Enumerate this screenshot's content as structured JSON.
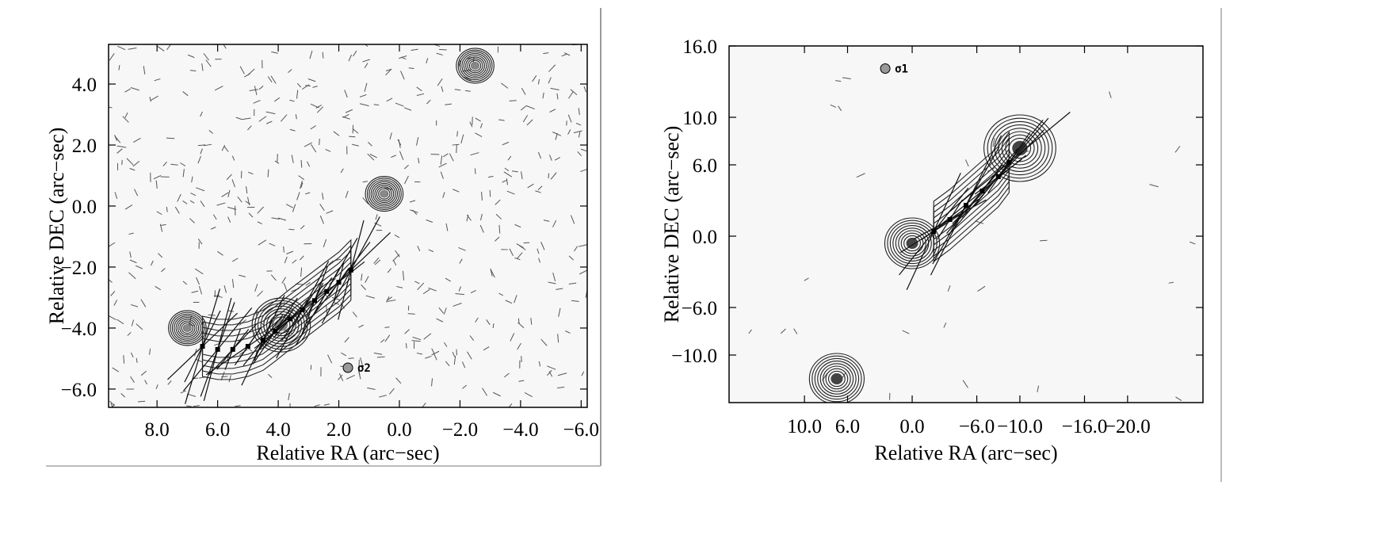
{
  "chart_data": [
    {
      "type": "contour",
      "xlabel": "Relative RA (arc−sec)",
      "ylabel": "Relative DEC (arc−sec)",
      "xlim": [
        9.6,
        -6.2
      ],
      "ylim": [
        -6.6,
        5.3
      ],
      "xticks": [
        8.0,
        6.0,
        4.0,
        2.0,
        0.0,
        -2.0,
        -4.0,
        -6.0
      ],
      "xtick_labels": [
        "8.0",
        "6.0",
        "4.0",
        "2.0",
        "0.0",
        "−2.0",
        "−4.0",
        "−6.0"
      ],
      "yticks": [
        4.0,
        2.0,
        0.0,
        -2.0,
        -4.0,
        -6.0
      ],
      "ytick_labels": [
        "4.0",
        "2.0",
        "0.0",
        "−2.0",
        "−4.0",
        "−6.0"
      ],
      "beam_label": "σ2",
      "beam_position": [
        1.7,
        -5.3
      ],
      "components": [
        {
          "x": -2.5,
          "y": 4.6
        },
        {
          "x": 0.5,
          "y": 0.4
        },
        {
          "x": 3.9,
          "y": -3.9
        },
        {
          "x": 7.0,
          "y": -4.0
        }
      ],
      "knots": [
        {
          "x": 6.5,
          "y": -4.6
        },
        {
          "x": 6.0,
          "y": -4.7
        },
        {
          "x": 5.5,
          "y": -4.7
        },
        {
          "x": 5.0,
          "y": -4.6
        },
        {
          "x": 4.5,
          "y": -4.4
        },
        {
          "x": 4.1,
          "y": -4.1
        },
        {
          "x": 3.6,
          "y": -3.7
        },
        {
          "x": 3.2,
          "y": -3.4
        },
        {
          "x": 2.8,
          "y": -3.1
        },
        {
          "x": 2.4,
          "y": -2.8
        },
        {
          "x": 2.0,
          "y": -2.5
        },
        {
          "x": 1.6,
          "y": -2.1
        }
      ]
    },
    {
      "type": "contour",
      "xlabel": "Relative RA (arc−sec)",
      "ylabel": "Relative DEC (arc−sec)",
      "xlim": [
        17.0,
        -27.0
      ],
      "ylim": [
        -14.0,
        16.0
      ],
      "xticks": [
        10.0,
        6.0,
        0.0,
        -6.0,
        -10.0,
        -16.0,
        -20.0
      ],
      "xtick_labels": [
        "10.0",
        "6.0",
        "0.0",
        "−6.0",
        "−10.0",
        "−16.0",
        "−20.0"
      ],
      "yticks": [
        16.0,
        10.0,
        6.0,
        0.0,
        -6.0,
        -10.0
      ],
      "ytick_labels": [
        "16.0",
        "10.0",
        "6.0",
        "0.0",
        "−6.0",
        "−10.0"
      ],
      "beam_label": "σ1",
      "beam_position": [
        2.5,
        14.1
      ],
      "components": [
        {
          "x": 0.0,
          "y": -0.6
        },
        {
          "x": -10.0,
          "y": 7.4
        },
        {
          "x": 7.0,
          "y": -12.0
        }
      ],
      "knots": [
        {
          "x": -2.0,
          "y": 0.4
        },
        {
          "x": -3.5,
          "y": 1.4
        },
        {
          "x": -5.0,
          "y": 2.6
        },
        {
          "x": -6.5,
          "y": 3.8
        },
        {
          "x": -8.0,
          "y": 5.0
        },
        {
          "x": -9.0,
          "y": 6.2
        }
      ]
    }
  ]
}
